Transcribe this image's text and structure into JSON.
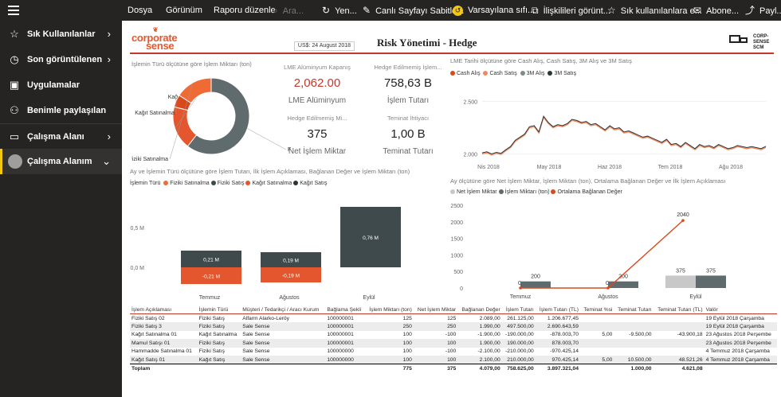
{
  "toolbar": {
    "dosya": "Dosya",
    "gorunum": "Görünüm",
    "raporu_duzenle": "Raporu düzenle",
    "ara": "Ara...",
    "yenile": "Yen...",
    "canli": "Canlı Sayfayı Sabitle...",
    "varsayilan": "Varsayılana sıfı...",
    "iliskili": "İlişkilileri görünt...",
    "sik_kullanilan": "Sık kullanılanlara e...",
    "abone": "Abone...",
    "paylas": "Payl..."
  },
  "sidebar": {
    "items": [
      {
        "label": "Sık Kullanılanlar",
        "icon": "star-icon",
        "chevron": "chevron-right-icon"
      },
      {
        "label": "Son görüntülenen",
        "icon": "clock-icon",
        "chevron": "chevron-right-icon"
      },
      {
        "label": "Uygulamalar",
        "icon": "apps-icon"
      },
      {
        "label": "Benimle paylaşılan",
        "icon": "shared-icon"
      },
      {
        "label": "Çalışma Alanı",
        "icon": "workspace-icon",
        "chevron": "chevron-right-icon"
      },
      {
        "label": "Çalışma Alanım",
        "icon": "avatar-icon",
        "chevron": "chevron-down-icon"
      }
    ]
  },
  "header": {
    "logo_left_a": "corpora",
    "logo_left_t": "t",
    "logo_left_e": "e",
    "logo_left_b": "sense",
    "date": "US$: 24 August 2018",
    "title": "Risk Yönetimi - Hedge",
    "logo_right_a": "CORP-",
    "logo_right_b": "SENSE",
    "logo_right_c": "SCM"
  },
  "donut": {
    "title": "İşlemin Türü ölçütüne göre İşlem Miktarı (ton)",
    "slices": [
      {
        "label": "Kağıt Satış",
        "value": 350,
        "color": "#e4572e"
      },
      {
        "label": "Kağıt Satınalma",
        "value": 100,
        "color": "#d84a1c"
      },
      {
        "label": "Fiziki Satınalma",
        "value": 300,
        "color": "#f06a35"
      },
      {
        "label": "Fiziki Satış",
        "value": 1150,
        "color": "#5f6b6d"
      }
    ]
  },
  "cards": {
    "c1_label": "LME Alüminyum Kapanış",
    "c1_value": "2,062.00",
    "c1_sub": "LME Alüminyum",
    "c2_label": "Hedge Edilmemiş İşlem...",
    "c2_value": "758,63 B",
    "c2_sub": "İşlem Tutarı",
    "c3_label": "Hedge Edilmemiş Mi...",
    "c3_value": "375",
    "c3_sub": "Net İşlem Miktar",
    "c4_label": "Teminat İhtiyacı",
    "c4_value": "1,00 B",
    "c4_sub": "Teminat Tutarı"
  },
  "linechart": {
    "title": "LME Tarihi ölçütüne göre Cash Alış, Cash Satış, 3M Alış ve 3M Satış",
    "legend": [
      "Cash Alış",
      "Cash Satış",
      "3M Alış",
      "3M Satış"
    ],
    "legend_colors": [
      "#d84a1c",
      "#f08a5d",
      "#7f8c8d",
      "#2d3436"
    ],
    "y_ticks": [
      "2.500",
      "2.000"
    ],
    "x_ticks": [
      "Nis 2018",
      "May 2018",
      "Haz 2018",
      "Tem 2018",
      "Ağu 2018"
    ]
  },
  "barchart1": {
    "title": "Ay ve İşlemin Türü ölçütüne göre İşlem Tutarı, İlk İşlem Açıklaması, Bağlanan Değer ve İşlem Miktarı (ton)",
    "legend_title": "İşlemin Türü",
    "legend": [
      "Fiziki Satınalma",
      "Fiziki Satış",
      "Kağıt Satınalma",
      "Kağıt Satış"
    ],
    "legend_colors": [
      "#f06a35",
      "#3f4a4d",
      "#e4572e",
      "#2d3436"
    ],
    "y_ticks": [
      "0,5 M",
      "0,0 M"
    ],
    "months": [
      "Temmuz",
      "Ağustos",
      "Eylül"
    ],
    "pos_labels": [
      "0,21 M",
      "0,19 M",
      "0,76 M"
    ],
    "neg_labels": [
      "-0,21 M",
      "-0,19 M",
      ""
    ]
  },
  "barchart2": {
    "title": "Ay ölçütüne göre Net İşlem Miktar, İşlem Miktarı (ton), Ortalama Bağlanan Değer ve İlk İşlem Açıklaması",
    "legend": [
      "Net İşlem Miktar",
      "İşlem Miktarı (ton)",
      "Ortalama Bağlanan Değer"
    ],
    "legend_colors": [
      "#c8c8c8",
      "#5f6b6d",
      "#d84a1c"
    ],
    "y_ticks": [
      "2500",
      "2000",
      "1500",
      "1000",
      "500",
      "0"
    ],
    "months": [
      "Temmuz",
      "Ağustos",
      "Eylül"
    ],
    "net_labels": [
      "0",
      "0",
      "375"
    ],
    "miktar_labels": [
      "200",
      "200",
      "375"
    ],
    "ort_label": "2040"
  },
  "chart_data": [
    {
      "type": "pie",
      "title": "İşlemin Türü ölçütüne göre İşlem Miktarı (ton)",
      "categories": [
        "Kağıt Satış",
        "Kağıt Satınalma",
        "Fiziki Satınalma",
        "Fiziki Satış"
      ],
      "values": [
        350,
        100,
        300,
        1150
      ]
    },
    {
      "type": "line",
      "title": "LME Tarihi ölçütüne göre Cash Alış, Cash Satış, 3M Alış ve 3M Satış",
      "x_ticks": [
        "Nis 2018",
        "May 2018",
        "Haz 2018",
        "Tem 2018",
        "Ağu 2018"
      ],
      "ylim": [
        1950,
        2650
      ],
      "series": [
        {
          "name": "Cash Alış",
          "values": [
            2000,
            2010,
            1990,
            2005,
            1995,
            2030,
            2060,
            2120,
            2150,
            2180,
            2250,
            2260,
            2200,
            2350,
            2290,
            2250,
            2270,
            2260,
            2280,
            2320,
            2310,
            2290,
            2300,
            2270,
            2280,
            2250,
            2220,
            2260,
            2230,
            2240,
            2200,
            2210,
            2190,
            2170,
            2150,
            2160,
            2140,
            2120,
            2100,
            2130,
            2080,
            2090,
            2060,
            2100,
            2070,
            2040,
            2080,
            2060,
            2070,
            2050,
            2080,
            2060,
            2040,
            2050,
            2070,
            2060,
            2050,
            2060,
            2050,
            2040,
            2062
          ]
        },
        {
          "name": "3M Satış",
          "values": [
            2010,
            2020,
            2000,
            2015,
            2005,
            2040,
            2070,
            2130,
            2160,
            2190,
            2260,
            2270,
            2210,
            2360,
            2300,
            2260,
            2280,
            2270,
            2290,
            2330,
            2320,
            2300,
            2310,
            2280,
            2290,
            2260,
            2230,
            2270,
            2240,
            2250,
            2210,
            2220,
            2200,
            2180,
            2160,
            2170,
            2150,
            2130,
            2110,
            2140,
            2090,
            2100,
            2070,
            2110,
            2080,
            2050,
            2090,
            2070,
            2080,
            2060,
            2090,
            2070,
            2050,
            2060,
            2080,
            2070,
            2060,
            2070,
            2060,
            2050,
            2072
          ]
        }
      ]
    },
    {
      "type": "bar",
      "title": "Ay ve İşlemin Türü ölçütüne göre İşlem Tutarı",
      "categories": [
        "Temmuz",
        "Ağustos",
        "Eylül"
      ],
      "series": [
        {
          "name": "Fiziki Satış",
          "values": [
            0.21,
            0.19,
            0.76
          ]
        },
        {
          "name": "Kağıt Satınalma",
          "values": [
            -0.21,
            -0.19,
            0
          ]
        }
      ],
      "ylim": [
        -0.3,
        0.9
      ]
    },
    {
      "type": "bar",
      "title": "Ay ölçütüne göre Net İşlem Miktar, İşlem Miktarı (ton), Ortalama Bağlanan Değer",
      "categories": [
        "Temmuz",
        "Ağustos",
        "Eylül"
      ],
      "series": [
        {
          "name": "Net İşlem Miktar",
          "values": [
            0,
            0,
            375
          ]
        },
        {
          "name": "İşlem Miktarı (ton)",
          "values": [
            200,
            200,
            375
          ]
        },
        {
          "name": "Ortalama Bağlanan Değer",
          "values": [
            0,
            0,
            2040
          ]
        }
      ],
      "ylim": [
        0,
        2500
      ]
    }
  ],
  "table": {
    "headers": [
      "İşlem Açıklaması",
      "İşlemin Türü",
      "Müşteri / Tedarikçi / Aracı Kurum",
      "Bağlama Şekli",
      "İşlem Miktarı (ton)",
      "Net İşlem Miktar",
      "Bağlanan Değer",
      "İşlem Tutarı",
      "İşlem Tutarı (TL)",
      "Teminat %si",
      "Teminat Tutarı",
      "Teminat Tutarı (TL)",
      "Valör"
    ],
    "rows": [
      [
        "Fiziki Satış 02",
        "Fiziki Satış",
        "Alfarm Alarko-Leröy",
        "100000001",
        "125",
        "125",
        "2.089,00",
        "261.125,00",
        "1.206.677,45",
        "",
        "",
        "",
        "19 Eylül 2018 Çarşamba"
      ],
      [
        "Fiziki Satış 3",
        "Fiziki Satış",
        "Sale Sense",
        "100000001",
        "250",
        "250",
        "1.990,00",
        "497.500,00",
        "2.690.643,59",
        "",
        "",
        "",
        "19 Eylül 2018 Çarşamba"
      ],
      [
        "Kağıt Satınalma 01",
        "Kağıt Satınalma",
        "Sale Sense",
        "100000001",
        "100",
        "-100",
        "-1.900,00",
        "-190.000,00",
        "-878.003,70",
        "5,00",
        "-9.500,00",
        "-43.900,18",
        "23 Ağustos 2018 Perşembe"
      ],
      [
        "Mamul Satışı 01",
        "Fiziki Satış",
        "Sale Sense",
        "100000001",
        "100",
        "100",
        "1.900,00",
        "190.000,00",
        "878.003,70",
        "",
        "",
        "",
        "23 Ağustos 2018 Perşembe"
      ],
      [
        "Hammadde Satınalma 01",
        "Fiziki Satış",
        "Sale Sense",
        "100000000",
        "100",
        "-100",
        "-2.100,00",
        "-210.000,00",
        "-970.425,14",
        "",
        "",
        "",
        "4 Temmuz 2018 Çarşamba"
      ],
      [
        "Kağıt Satış 01",
        "Kağıt Satış",
        "Sale Sense",
        "100000000",
        "100",
        "100",
        "2.100,00",
        "210.000,00",
        "970.425,14",
        "5,00",
        "10.500,00",
        "48.521,26",
        "4 Temmuz 2018 Çarşamba"
      ]
    ],
    "total": [
      "Toplam",
      "",
      "",
      "",
      "775",
      "375",
      "4.079,00",
      "758.625,00",
      "3.897.321,04",
      "",
      "1.000,00",
      "4.621,08",
      ""
    ]
  }
}
